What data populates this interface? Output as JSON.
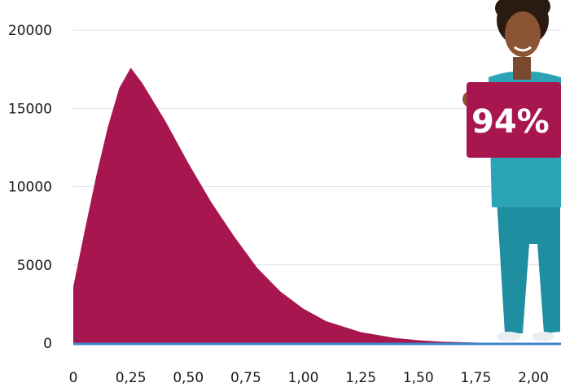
{
  "chart_data": {
    "type": "area",
    "x": [
      0,
      0.05,
      0.1,
      0.15,
      0.2,
      0.25,
      0.3,
      0.4,
      0.5,
      0.6,
      0.7,
      0.75,
      0.8,
      0.9,
      1.0,
      1.1,
      1.25,
      1.4,
      1.5,
      1.6,
      1.75,
      1.85,
      2.0
    ],
    "y": [
      3600,
      7200,
      10700,
      13800,
      16300,
      17600,
      16600,
      14200,
      11500,
      9000,
      6800,
      5800,
      4800,
      3300,
      2200,
      1400,
      700,
      320,
      180,
      90,
      30,
      10,
      0
    ],
    "xlim": [
      0,
      2.0
    ],
    "ylim": [
      0,
      20000
    ],
    "x_ticks": [
      "0",
      "0,25",
      "0,50",
      "0,75",
      "1,00",
      "1,25",
      "1,50",
      "1,75",
      "2,00"
    ],
    "y_ticks": [
      "0",
      "5000",
      "10000",
      "15000",
      "20000"
    ],
    "grid": true,
    "colors": {
      "area": "#a8164f",
      "baseline": "#3a86c8",
      "grid": "#d6e4f0"
    }
  },
  "badge": {
    "text": "94%",
    "color": "#a8164f"
  }
}
